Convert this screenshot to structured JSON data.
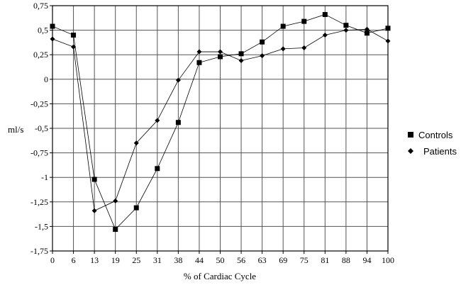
{
  "chart_data": {
    "type": "line",
    "x": [
      "0",
      "6",
      "13",
      "19",
      "25",
      "31",
      "38",
      "44",
      "50",
      "56",
      "63",
      "69",
      "75",
      "81",
      "88",
      "94",
      "100"
    ],
    "xlabel": "% of Cardiac Cycle",
    "ylabel": "ml/s",
    "ylim": [
      -1.75,
      0.75
    ],
    "yticks": [
      "0,75",
      "0,5",
      "0,25",
      "0",
      "-0,25",
      "-0,5",
      "-0,75",
      "-1",
      "-1,25",
      "-1,5",
      "-1,75"
    ],
    "grid": true,
    "legend_position": "right",
    "series": [
      {
        "name": "Controls",
        "marker": "square",
        "color": "#000000",
        "values": [
          0.54,
          0.45,
          -1.02,
          -1.53,
          -1.31,
          -0.91,
          -0.44,
          0.17,
          0.23,
          0.26,
          0.38,
          0.54,
          0.59,
          0.66,
          0.55,
          0.47,
          0.52
        ]
      },
      {
        "name": "Patients",
        "marker": "diamond",
        "color": "#000000",
        "values": [
          0.41,
          0.33,
          -1.34,
          -1.24,
          -0.65,
          -0.42,
          -0.01,
          0.28,
          0.28,
          0.19,
          0.24,
          0.31,
          0.32,
          0.45,
          0.5,
          0.51,
          0.39
        ]
      }
    ]
  }
}
